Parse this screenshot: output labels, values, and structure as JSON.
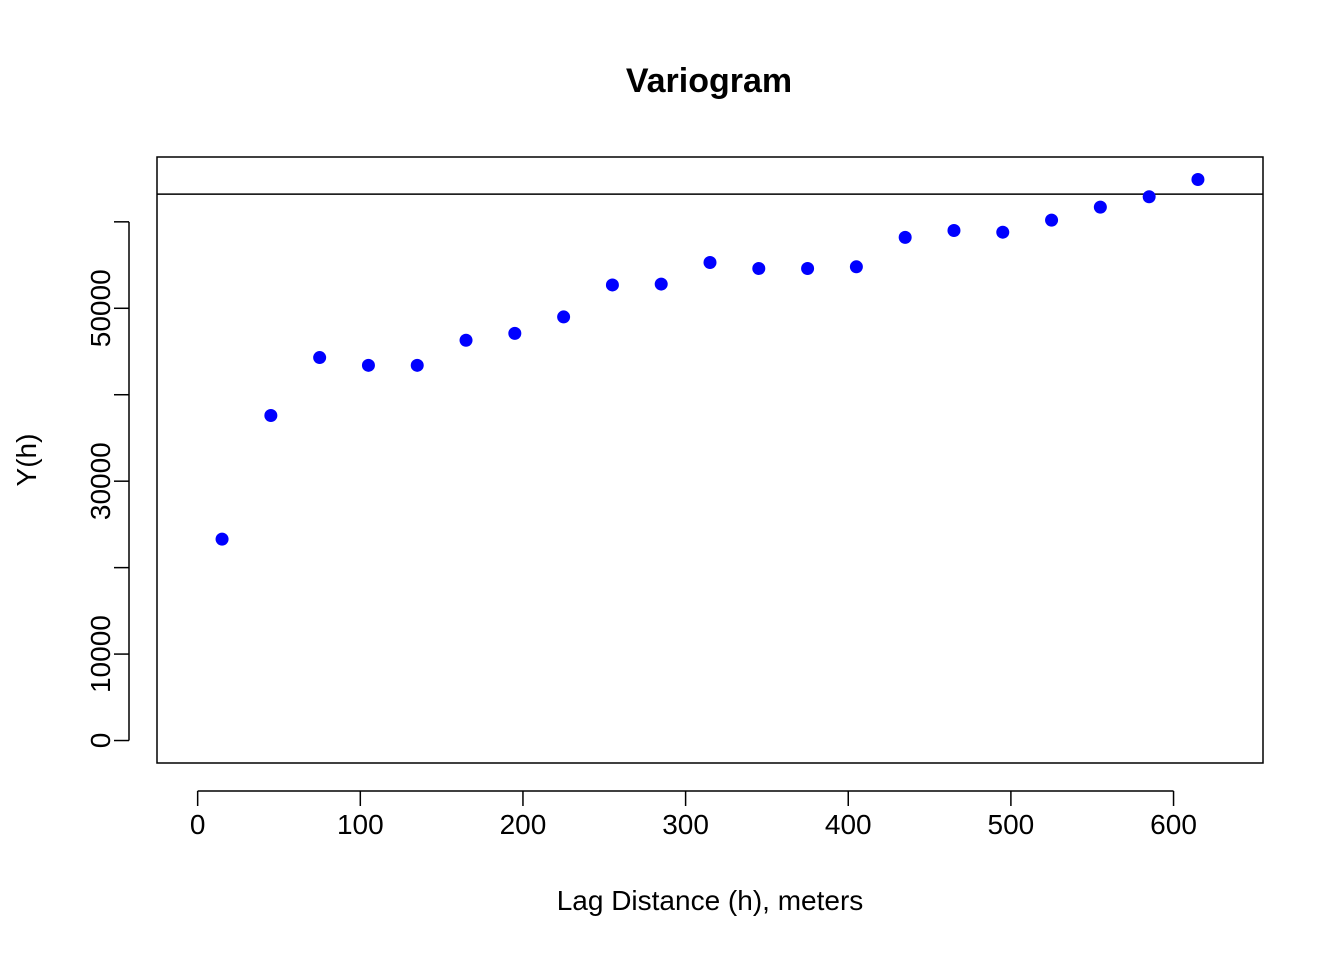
{
  "chart_data": {
    "type": "scatter",
    "title": "Variogram",
    "xlabel": "Lag Distance (h), meters",
    "ylabel": "Y(h)",
    "xlim": [
      -25,
      655
    ],
    "ylim": [
      -2600,
      67500
    ],
    "x_ticks": [
      0,
      100,
      200,
      300,
      400,
      500,
      600
    ],
    "y_ticks": [
      0,
      10000,
      20000,
      30000,
      40000,
      50000,
      60000
    ],
    "y_tick_labels_shown": [
      0,
      10000,
      30000,
      50000
    ],
    "grid": false,
    "point_color": "#0000FF",
    "reference_line": {
      "orientation": "horizontal",
      "y": 63200,
      "color": "#000000"
    },
    "series": [
      {
        "x": [
          15,
          45,
          75,
          105,
          135,
          165,
          195,
          225,
          255,
          285,
          315,
          345,
          375,
          405,
          435,
          465,
          495,
          525,
          555,
          585,
          615
        ],
        "y": [
          23300,
          37600,
          44300,
          43400,
          43400,
          46300,
          47100,
          49000,
          52700,
          52800,
          55300,
          54600,
          54600,
          54800,
          58200,
          59000,
          58800,
          60200,
          61700,
          62900,
          64900
        ]
      }
    ]
  }
}
